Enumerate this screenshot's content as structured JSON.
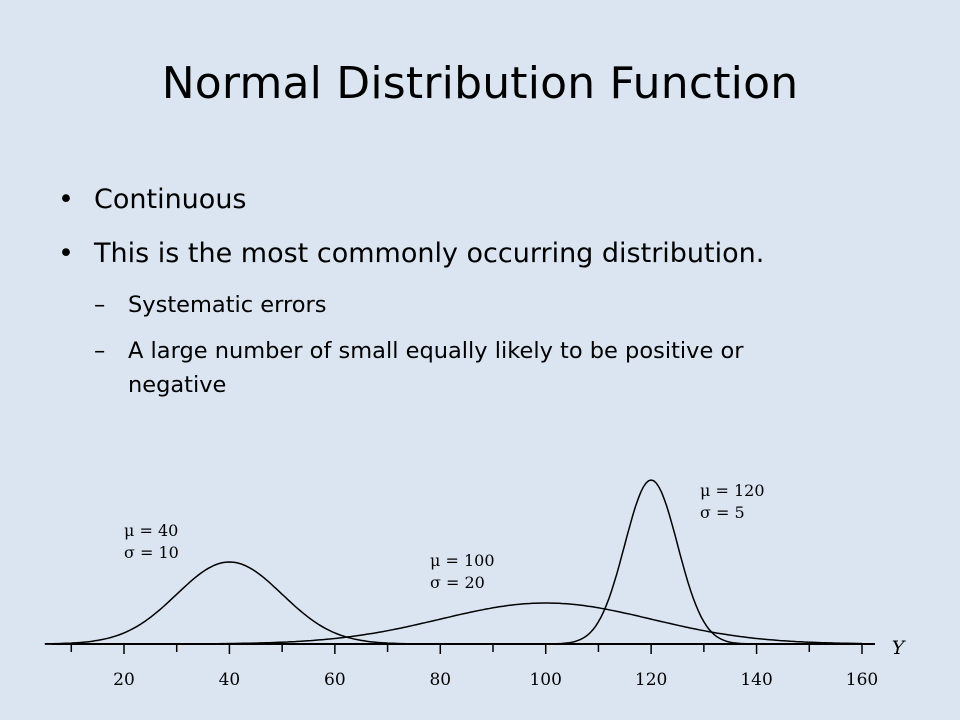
{
  "slide": {
    "title": "Normal Distribution Function",
    "bullets": [
      "Continuous",
      "This is the most commonly occurring distribution."
    ],
    "sub_bullets": [
      "Systematic errors",
      "A large number of small equally likely to be positive or negative"
    ]
  },
  "chart_data": {
    "type": "line",
    "xlabel": "Y",
    "xlim": [
      0,
      160
    ],
    "x_ticks": [
      20,
      40,
      60,
      80,
      100,
      120,
      140,
      160
    ],
    "grid": false,
    "series": [
      {
        "mu": 40,
        "sigma": 10,
        "label_mu": "μ = 40",
        "label_sigma": "σ = 10"
      },
      {
        "mu": 100,
        "sigma": 20,
        "label_mu": "μ = 100",
        "label_sigma": "σ = 20"
      },
      {
        "mu": 120,
        "sigma": 5,
        "label_mu": "μ = 120",
        "label_sigma": "σ = 5"
      }
    ]
  }
}
